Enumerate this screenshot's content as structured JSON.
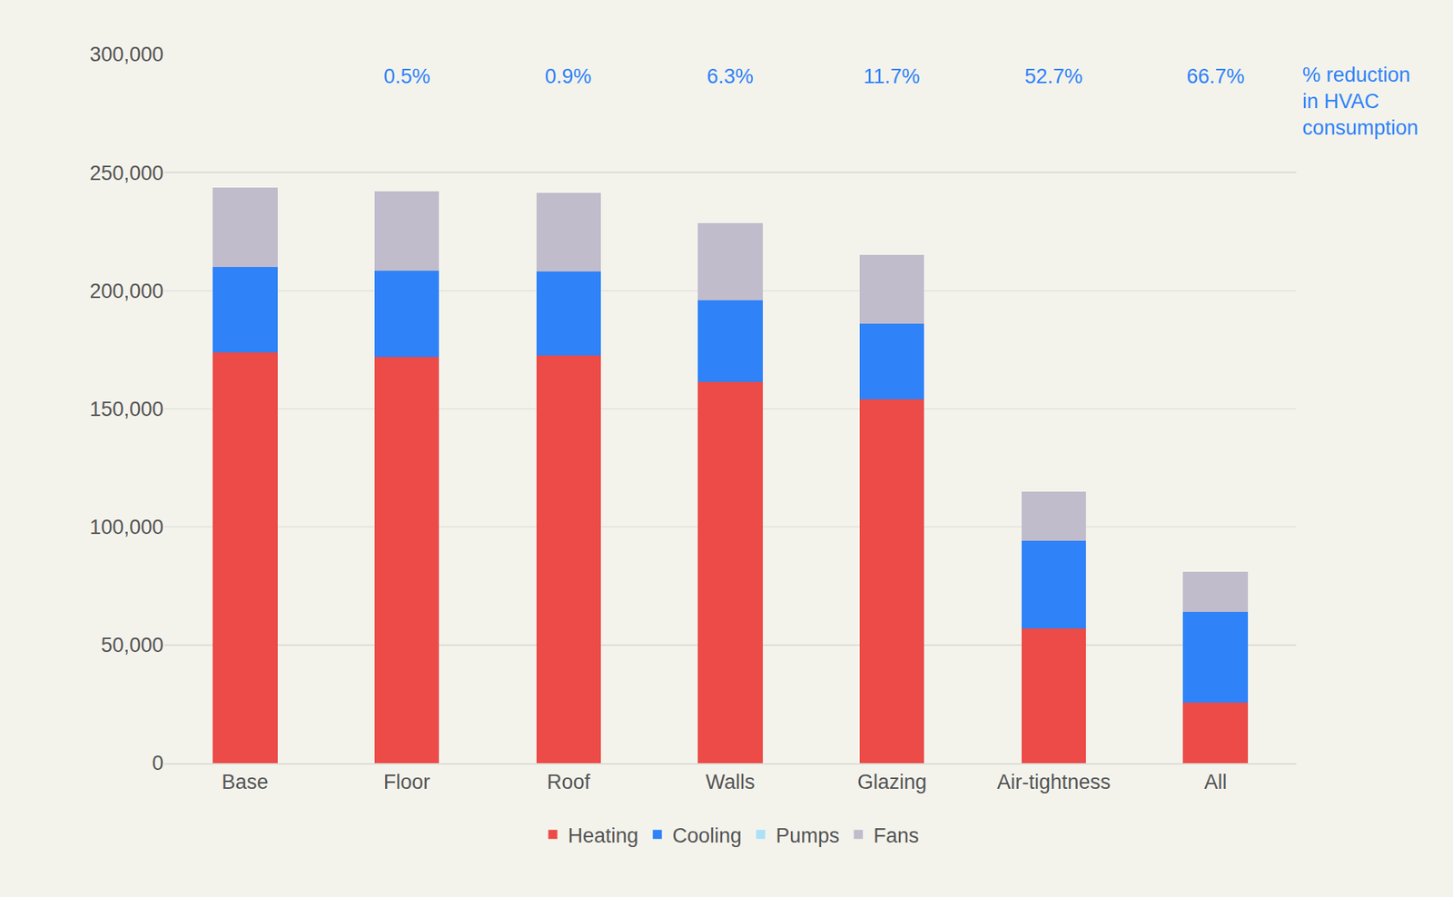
{
  "chart_data": {
    "type": "bar",
    "stacked": true,
    "categories": [
      "Base",
      "Floor",
      "Roof",
      "Walls",
      "Glazing",
      "Air-tightness",
      "All"
    ],
    "series": [
      {
        "name": "Heating",
        "color": "#EC4B47",
        "values": [
          174000,
          172000,
          172500,
          161500,
          154000,
          57000,
          25500
        ]
      },
      {
        "name": "Cooling",
        "color": "#2F82F8",
        "values": [
          36000,
          36500,
          35500,
          34500,
          32000,
          37000,
          38500
        ]
      },
      {
        "name": "Pumps",
        "color": "#ADE1F7",
        "values": [
          0,
          0,
          0,
          0,
          0,
          0,
          0
        ]
      },
      {
        "name": "Fans",
        "color": "#C0BCCC",
        "values": [
          33500,
          33500,
          33500,
          32500,
          29000,
          21000,
          17000
        ]
      }
    ],
    "ylim": [
      0,
      300000
    ],
    "yticks": [
      0,
      {
        "value": 50000,
        "label": "50,000"
      },
      {
        "value": 100000,
        "label": "100,000"
      },
      {
        "value": 150000,
        "label": "150,000"
      },
      {
        "value": 200000,
        "label": "200,000"
      },
      {
        "value": 250000,
        "label": "250,000"
      },
      {
        "value": 300000,
        "label": "300,000"
      }
    ],
    "grid": true,
    "legend": "bottom",
    "annotations": [
      {
        "x": "Floor",
        "text": "0.5%"
      },
      {
        "x": "Roof",
        "text": "0.9%"
      },
      {
        "x": "Walls",
        "text": "6.3%"
      },
      {
        "x": "Glazing",
        "text": "11.7%"
      },
      {
        "x": "Air-tightness",
        "text": "52.7%"
      },
      {
        "x": "All",
        "text": "66.7%"
      },
      {
        "text": "% reduction\nin HVAC\nconsumption"
      }
    ]
  }
}
